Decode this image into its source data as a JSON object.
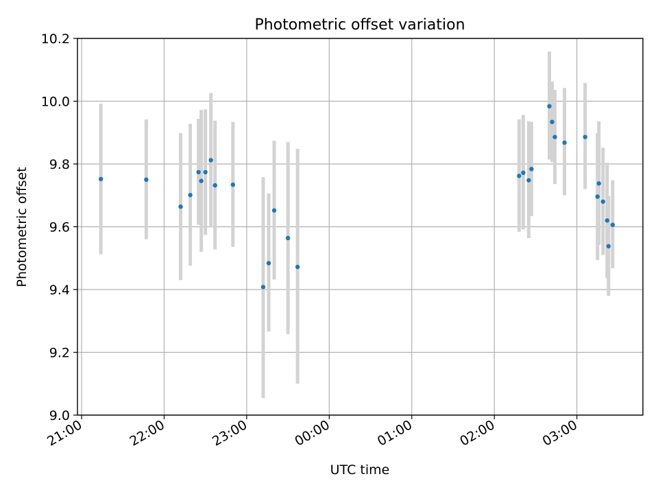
{
  "chart_data": {
    "type": "scatter",
    "title": "Photometric offset variation",
    "xlabel": "UTC time",
    "ylabel": "Photometric offset",
    "ylim": [
      9.0,
      10.2
    ],
    "xlim_hours": [
      20.95,
      27.8
    ],
    "grid": true,
    "x_ticks": [
      {
        "label": "21:00",
        "hour": 21
      },
      {
        "label": "22:00",
        "hour": 22
      },
      {
        "label": "23:00",
        "hour": 23
      },
      {
        "label": "00:00",
        "hour": 24
      },
      {
        "label": "01:00",
        "hour": 25
      },
      {
        "label": "02:00",
        "hour": 26
      },
      {
        "label": "03:00",
        "hour": 27
      }
    ],
    "y_ticks": [
      9.0,
      9.2,
      9.4,
      9.6,
      9.8,
      10.0,
      10.2
    ],
    "y_tick_labels": [
      "9.0",
      "9.2",
      "9.4",
      "9.6",
      "9.8",
      "10.0",
      "10.2"
    ],
    "colors": {
      "point": "#1f77b4",
      "errorbar": "#d3d3d3",
      "grid": "#b0b0b0",
      "axis": "#000000"
    },
    "points": [
      {
        "t": "21:14",
        "y": 9.752,
        "lo": 9.512,
        "hi": 9.992
      },
      {
        "t": "21:47",
        "y": 9.75,
        "lo": 9.56,
        "hi": 9.942
      },
      {
        "t": "22:12",
        "y": 9.664,
        "lo": 9.43,
        "hi": 9.898
      },
      {
        "t": "22:19",
        "y": 9.701,
        "lo": 9.476,
        "hi": 9.928
      },
      {
        "t": "22:25",
        "y": 9.774,
        "lo": 9.606,
        "hi": 9.944
      },
      {
        "t": "22:27",
        "y": 9.746,
        "lo": 9.52,
        "hi": 9.972
      },
      {
        "t": "22:30",
        "y": 9.774,
        "lo": 9.574,
        "hi": 9.974
      },
      {
        "t": "22:34",
        "y": 9.812,
        "lo": 9.598,
        "hi": 10.026
      },
      {
        "t": "22:37",
        "y": 9.732,
        "lo": 9.528,
        "hi": 9.938
      },
      {
        "t": "22:50",
        "y": 9.734,
        "lo": 9.536,
        "hi": 9.934
      },
      {
        "t": "23:12",
        "y": 9.408,
        "lo": 9.054,
        "hi": 9.758
      },
      {
        "t": "23:16",
        "y": 9.484,
        "lo": 9.266,
        "hi": 9.706
      },
      {
        "t": "23:20",
        "y": 9.652,
        "lo": 9.432,
        "hi": 9.874
      },
      {
        "t": "23:30",
        "y": 9.564,
        "lo": 9.258,
        "hi": 9.87
      },
      {
        "t": "23:37",
        "y": 9.472,
        "lo": 9.1,
        "hi": 9.848
      },
      {
        "t": "02:18",
        "y": 9.762,
        "lo": 9.584,
        "hi": 9.942
      },
      {
        "t": "02:21",
        "y": 9.772,
        "lo": 9.592,
        "hi": 9.956
      },
      {
        "t": "02:25",
        "y": 9.748,
        "lo": 9.564,
        "hi": 9.936
      },
      {
        "t": "02:27",
        "y": 9.784,
        "lo": 9.634,
        "hi": 9.934
      },
      {
        "t": "02:40",
        "y": 9.984,
        "lo": 9.814,
        "hi": 10.158
      },
      {
        "t": "02:42",
        "y": 9.934,
        "lo": 9.806,
        "hi": 10.062
      },
      {
        "t": "02:44",
        "y": 9.886,
        "lo": 9.736,
        "hi": 10.036
      },
      {
        "t": "02:51",
        "y": 9.868,
        "lo": 9.7,
        "hi": 10.042
      },
      {
        "t": "03:06",
        "y": 9.886,
        "lo": 9.72,
        "hi": 10.058
      },
      {
        "t": "03:15",
        "y": 9.696,
        "lo": 9.494,
        "hi": 9.898
      },
      {
        "t": "03:16",
        "y": 9.738,
        "lo": 9.542,
        "hi": 9.936
      },
      {
        "t": "03:19",
        "y": 9.68,
        "lo": 9.51,
        "hi": 9.852
      },
      {
        "t": "03:22",
        "y": 9.62,
        "lo": 9.436,
        "hi": 9.804
      },
      {
        "t": "03:23",
        "y": 9.538,
        "lo": 9.38,
        "hi": 9.698
      },
      {
        "t": "03:26",
        "y": 9.606,
        "lo": 9.468,
        "hi": 9.748
      }
    ]
  }
}
